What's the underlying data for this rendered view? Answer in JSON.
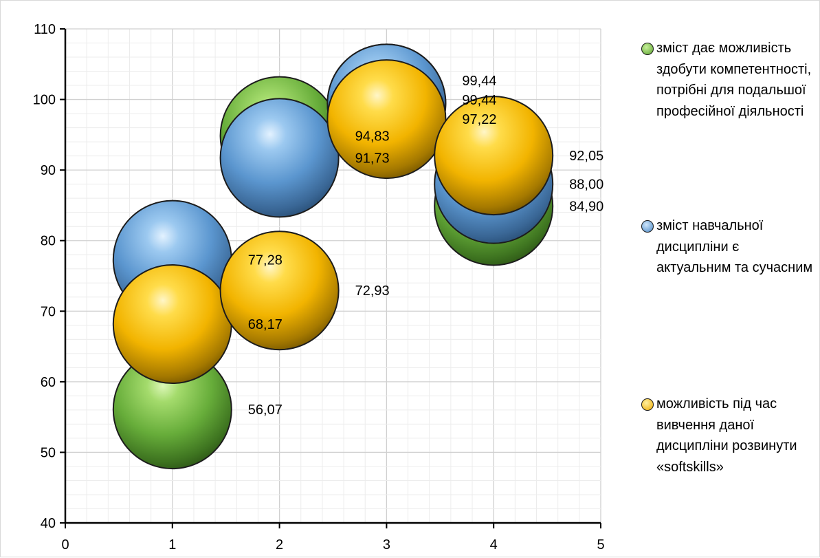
{
  "chart_data": {
    "type": "bubble",
    "title": "",
    "xlabel": "",
    "ylabel": "",
    "xlim": [
      0,
      5
    ],
    "ylim": [
      40,
      110
    ],
    "x_ticks": [
      "0",
      "1",
      "2",
      "3",
      "4",
      "5"
    ],
    "y_ticks": [
      "40",
      "50",
      "60",
      "70",
      "80",
      "90",
      "100",
      "110"
    ],
    "grid": "major and minor gridlines",
    "legend_position": "right",
    "series": [
      {
        "name": "зміст дає можливість здобути компетентності, потрібні для подальшої професійної діяльності",
        "color": "#6bb33c",
        "points": [
          {
            "x": 1,
            "y": 56.07,
            "label": "56,07"
          },
          {
            "x": 2,
            "y": 94.83,
            "label": "94,83"
          },
          {
            "x": 3,
            "y": 99.44,
            "label": "99,44"
          },
          {
            "x": 4,
            "y": 84.9,
            "label": "84,90"
          }
        ]
      },
      {
        "name": "зміст навчальної дисципліни є актуальним та сучасним",
        "color": "#5b9bd5",
        "points": [
          {
            "x": 1,
            "y": 77.28,
            "label": "77,28"
          },
          {
            "x": 2,
            "y": 91.73,
            "label": "91,73"
          },
          {
            "x": 3,
            "y": 99.44,
            "label": "99,44"
          },
          {
            "x": 4,
            "y": 88.0,
            "label": "88,00"
          }
        ]
      },
      {
        "name": "можливість під час вивчення даної дисципліни розвинути «softskills»",
        "color": "#ffc000",
        "points": [
          {
            "x": 1,
            "y": 68.17,
            "label": "68,17"
          },
          {
            "x": 2,
            "y": 72.93,
            "label": "72,93"
          },
          {
            "x": 3,
            "y": 97.22,
            "label": "97,22"
          },
          {
            "x": 4,
            "y": 92.05,
            "label": "92,05"
          }
        ]
      }
    ]
  }
}
